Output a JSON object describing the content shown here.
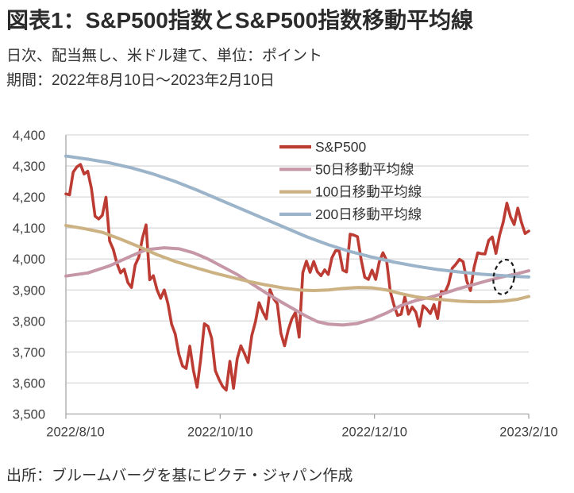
{
  "title": "図表1：S&P500指数とS&P500指数移動平均線",
  "subtitle1": "日次、配当無し、米ドル建て、単位：ポイント",
  "subtitle2": "期間：2022年8月10日～2023年2月10日",
  "source": "出所：ブルームバーグを基にピクテ・ジャパン作成",
  "legend": {
    "items": [
      "S&P500",
      "50日移動平均線",
      "100日移動平均線",
      "200日移動平均線"
    ]
  },
  "colors": {
    "sp500": "#bc3c33",
    "ma50": "#c697a7",
    "ma100": "#ccb283",
    "ma200": "#9bb4ca",
    "grid": "#d9d9d9",
    "axis": "#a6a6a6",
    "tick_text": "#404040",
    "annotation": "#1a1a1a"
  },
  "chart_data": {
    "type": "line",
    "title": "S&P500指数とS&P500指数移動平均線",
    "xlabel": "",
    "ylabel": "ポイント",
    "ylim": [
      3500,
      4400
    ],
    "y_tick_step": 100,
    "grid": "horizontal",
    "legend_position": "top-right-inside",
    "x_axis": {
      "tick_labels": [
        "2022/8/10",
        "2022/10/10",
        "2022/12/10",
        "2023/2/10"
      ],
      "unit": "trading_day_index",
      "total_days": 127
    },
    "series": [
      {
        "name": "S&P500",
        "kind": "daily_values_day0_to_day127",
        "values": [
          4210,
          4207,
          4280,
          4297,
          4305,
          4274,
          4283,
          4228,
          4138,
          4129,
          4141,
          4199,
          4058,
          4031,
          3986,
          3955,
          3967,
          3924,
          3908,
          3980,
          4006,
          4067,
          4110,
          3933,
          3946,
          3901,
          3873,
          3900,
          3856,
          3790,
          3758,
          3693,
          3655,
          3647,
          3719,
          3640,
          3586,
          3678,
          3791,
          3783,
          3744,
          3640,
          3612,
          3589,
          3577,
          3670,
          3583,
          3678,
          3720,
          3695,
          3666,
          3753,
          3797,
          3859,
          3830,
          3807,
          3901,
          3872,
          3856,
          3760,
          3720,
          3771,
          3807,
          3828,
          3748,
          3956,
          3993,
          3957,
          3992,
          3959,
          3946,
          3965,
          3950,
          4004,
          4027,
          4026,
          3964,
          3958,
          4080,
          4077,
          4072,
          3999,
          3941,
          3934,
          3964,
          3934,
          3991,
          4020,
          3995,
          3896,
          3852,
          3818,
          3822,
          3878,
          3822,
          3845,
          3829,
          3783,
          3849,
          3839,
          3824,
          3853,
          3808,
          3895,
          3892,
          3919,
          3970,
          3983,
          3999,
          3991,
          3929,
          3898,
          3973,
          4020,
          4017,
          4016,
          4060,
          4071,
          4018,
          4077,
          4119,
          4180,
          4136,
          4111,
          4164,
          4118,
          4082,
          4090
        ]
      },
      {
        "name": "50日移動平均線",
        "kind": "anchors_day_value",
        "anchors": [
          [
            0,
            3945
          ],
          [
            6,
            3955
          ],
          [
            12,
            3978
          ],
          [
            18,
            4010
          ],
          [
            22,
            4030
          ],
          [
            27,
            4036
          ],
          [
            31,
            4033
          ],
          [
            35,
            4020
          ],
          [
            39,
            4000
          ],
          [
            43,
            3975
          ],
          [
            47,
            3950
          ],
          [
            51,
            3920
          ],
          [
            55,
            3890
          ],
          [
            59,
            3862
          ],
          [
            63,
            3835
          ],
          [
            66,
            3815
          ],
          [
            69,
            3798
          ],
          [
            72,
            3790
          ],
          [
            76,
            3787
          ],
          [
            80,
            3792
          ],
          [
            84,
            3806
          ],
          [
            88,
            3826
          ],
          [
            92,
            3850
          ],
          [
            96,
            3866
          ],
          [
            100,
            3877
          ],
          [
            104,
            3890
          ],
          [
            108,
            3905
          ],
          [
            112,
            3918
          ],
          [
            116,
            3931
          ],
          [
            120,
            3943
          ],
          [
            124,
            3953
          ],
          [
            127,
            3962
          ]
        ]
      },
      {
        "name": "100日移動平均線",
        "kind": "anchors_day_value",
        "anchors": [
          [
            0,
            4108
          ],
          [
            5,
            4098
          ],
          [
            10,
            4086
          ],
          [
            15,
            4064
          ],
          [
            20,
            4040
          ],
          [
            25,
            4014
          ],
          [
            30,
            3992
          ],
          [
            35,
            3974
          ],
          [
            40,
            3957
          ],
          [
            45,
            3942
          ],
          [
            50,
            3928
          ],
          [
            55,
            3916
          ],
          [
            60,
            3906
          ],
          [
            64,
            3900
          ],
          [
            68,
            3898
          ],
          [
            72,
            3900
          ],
          [
            76,
            3905
          ],
          [
            80,
            3908
          ],
          [
            84,
            3907
          ],
          [
            88,
            3900
          ],
          [
            92,
            3888
          ],
          [
            96,
            3878
          ],
          [
            100,
            3872
          ],
          [
            104,
            3868
          ],
          [
            108,
            3864
          ],
          [
            112,
            3862
          ],
          [
            116,
            3862
          ],
          [
            120,
            3864
          ],
          [
            124,
            3870
          ],
          [
            127,
            3879
          ]
        ]
      },
      {
        "name": "200日移動平均線",
        "kind": "anchors_day_value",
        "anchors": [
          [
            0,
            4332
          ],
          [
            6,
            4322
          ],
          [
            12,
            4310
          ],
          [
            18,
            4294
          ],
          [
            24,
            4274
          ],
          [
            30,
            4250
          ],
          [
            36,
            4222
          ],
          [
            42,
            4192
          ],
          [
            48,
            4162
          ],
          [
            54,
            4132
          ],
          [
            60,
            4102
          ],
          [
            66,
            4072
          ],
          [
            72,
            4046
          ],
          [
            78,
            4024
          ],
          [
            84,
            4006
          ],
          [
            90,
            3990
          ],
          [
            96,
            3977
          ],
          [
            102,
            3966
          ],
          [
            108,
            3958
          ],
          [
            114,
            3951
          ],
          [
            119,
            3947
          ],
          [
            123,
            3944
          ],
          [
            127,
            3942
          ]
        ]
      }
    ],
    "annotation": {
      "type": "dashed-ellipse",
      "center_day": 120.2,
      "center_value": 3942
    }
  }
}
